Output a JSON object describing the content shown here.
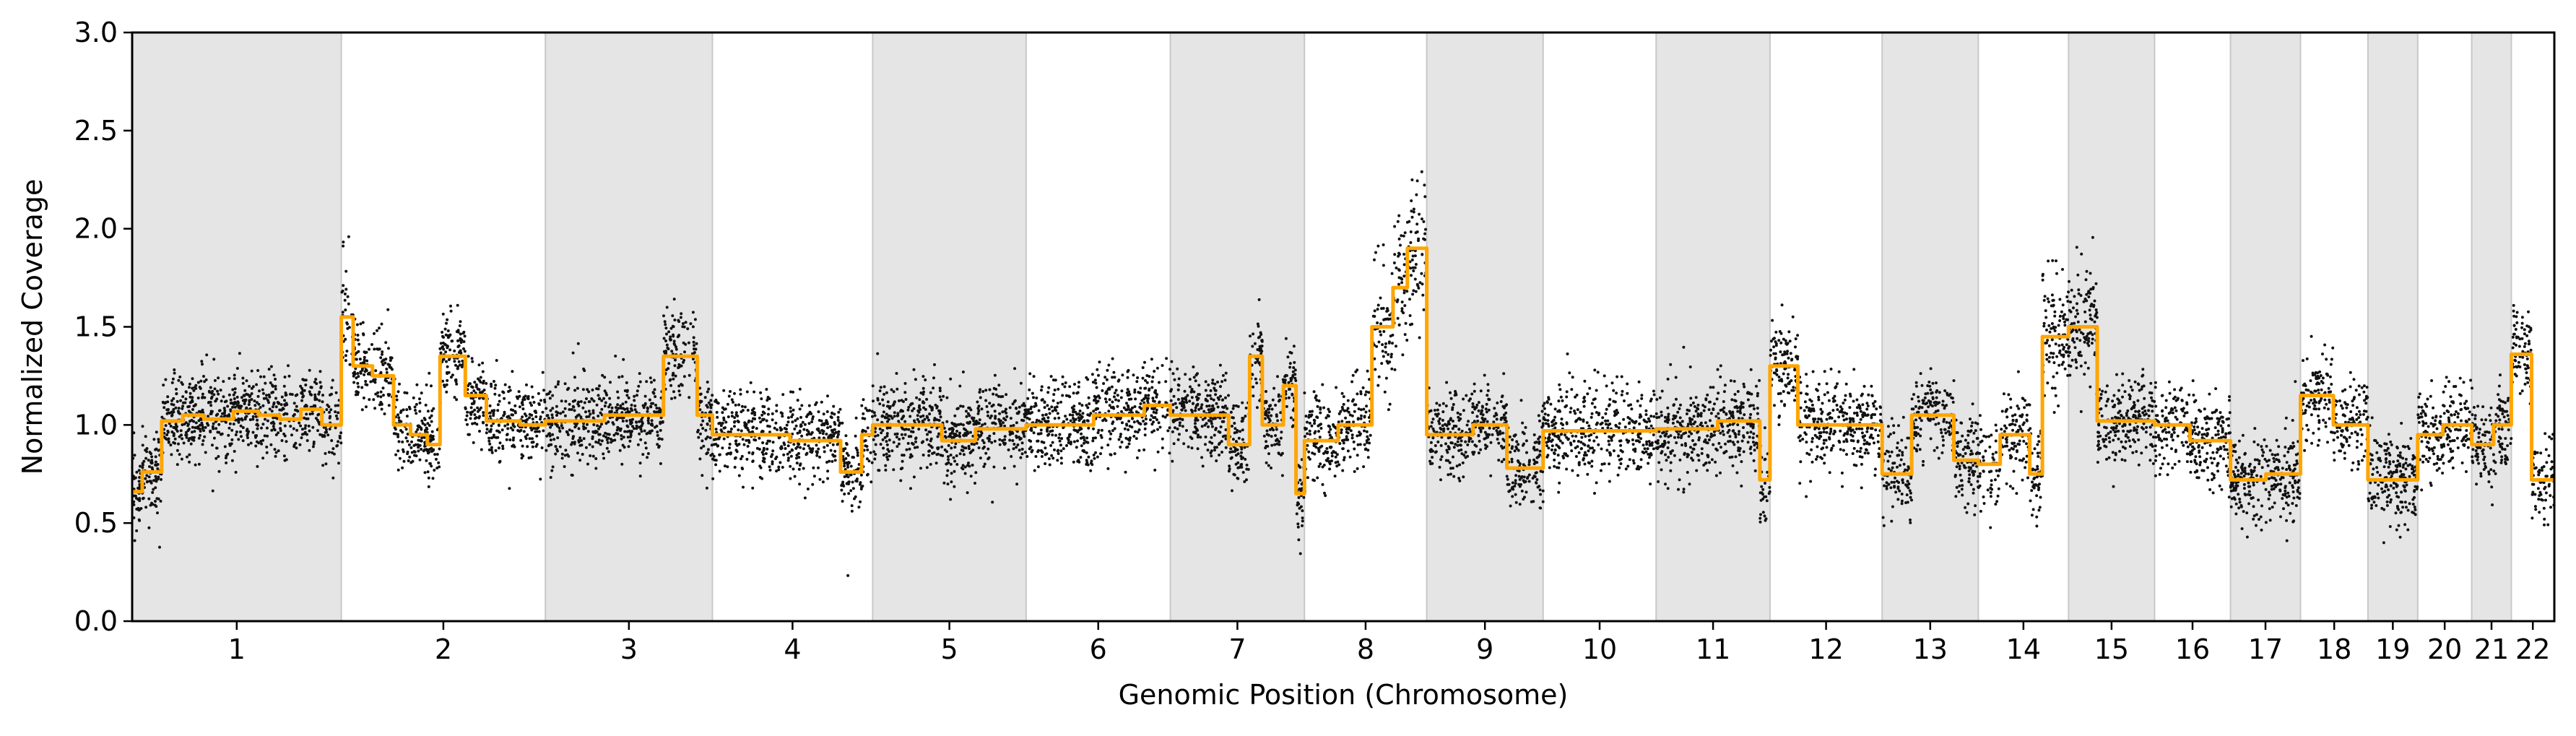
{
  "chart_data": {
    "type": "scatter",
    "xlabel": "Genomic Position (Chromosome)",
    "ylabel": "Normalized Coverage",
    "ylim": [
      0.0,
      3.0
    ],
    "yticks": [
      "0.0",
      "0.5",
      "1.0",
      "1.5",
      "2.0",
      "2.5",
      "3.0"
    ],
    "grid": false,
    "legend": "none",
    "alternating_bands": true,
    "colors": {
      "points": "#111111",
      "segments": "#FFA500",
      "band": "#e5e5e5",
      "band_edge": "#c8c8c8"
    },
    "chromosomes": [
      {
        "label": "1",
        "start": 0.0,
        "end": 248.0
      },
      {
        "label": "2",
        "start": 248.0,
        "end": 490.0
      },
      {
        "label": "3",
        "start": 490.0,
        "end": 688.0
      },
      {
        "label": "4",
        "start": 688.0,
        "end": 878.0
      },
      {
        "label": "5",
        "start": 878.0,
        "end": 1060.0
      },
      {
        "label": "6",
        "start": 1060.0,
        "end": 1231.0
      },
      {
        "label": "7",
        "start": 1231.0,
        "end": 1390.0
      },
      {
        "label": "8",
        "start": 1390.0,
        "end": 1535.0
      },
      {
        "label": "9",
        "start": 1535.0,
        "end": 1673.0
      },
      {
        "label": "10",
        "start": 1673.0,
        "end": 1807.0
      },
      {
        "label": "11",
        "start": 1807.0,
        "end": 1942.0
      },
      {
        "label": "12",
        "start": 1942.0,
        "end": 2075.0
      },
      {
        "label": "13",
        "start": 2075.0,
        "end": 2189.0
      },
      {
        "label": "14",
        "start": 2189.0,
        "end": 2296.0
      },
      {
        "label": "15",
        "start": 2296.0,
        "end": 2398.0
      },
      {
        "label": "16",
        "start": 2398.0,
        "end": 2488.0
      },
      {
        "label": "17",
        "start": 2488.0,
        "end": 2571.0
      },
      {
        "label": "18",
        "start": 2571.0,
        "end": 2651.0
      },
      {
        "label": "19",
        "start": 2651.0,
        "end": 2710.0
      },
      {
        "label": "20",
        "start": 2710.0,
        "end": 2774.0
      },
      {
        "label": "21",
        "start": 2774.0,
        "end": 2821.0
      },
      {
        "label": "22",
        "start": 2821.0,
        "end": 2872.0
      }
    ],
    "segments": [
      {
        "x0": 0,
        "x1": 12,
        "y": 0.66
      },
      {
        "x0": 12,
        "x1": 35,
        "y": 0.76
      },
      {
        "x0": 35,
        "x1": 60,
        "y": 1.02
      },
      {
        "x0": 60,
        "x1": 85,
        "y": 1.05
      },
      {
        "x0": 85,
        "x1": 120,
        "y": 1.03
      },
      {
        "x0": 120,
        "x1": 150,
        "y": 1.07
      },
      {
        "x0": 150,
        "x1": 175,
        "y": 1.05
      },
      {
        "x0": 175,
        "x1": 200,
        "y": 1.03
      },
      {
        "x0": 200,
        "x1": 225,
        "y": 1.08
      },
      {
        "x0": 225,
        "x1": 248,
        "y": 1.0
      },
      {
        "x0": 248,
        "x1": 262,
        "y": 1.55
      },
      {
        "x0": 262,
        "x1": 285,
        "y": 1.3
      },
      {
        "x0": 285,
        "x1": 310,
        "y": 1.25
      },
      {
        "x0": 310,
        "x1": 330,
        "y": 1.0
      },
      {
        "x0": 330,
        "x1": 350,
        "y": 0.95
      },
      {
        "x0": 350,
        "x1": 365,
        "y": 0.9
      },
      {
        "x0": 365,
        "x1": 395,
        "y": 1.35
      },
      {
        "x0": 395,
        "x1": 420,
        "y": 1.15
      },
      {
        "x0": 420,
        "x1": 460,
        "y": 1.02
      },
      {
        "x0": 460,
        "x1": 490,
        "y": 1.0
      },
      {
        "x0": 490,
        "x1": 560,
        "y": 1.02
      },
      {
        "x0": 560,
        "x1": 630,
        "y": 1.05
      },
      {
        "x0": 630,
        "x1": 670,
        "y": 1.35
      },
      {
        "x0": 670,
        "x1": 688,
        "y": 1.05
      },
      {
        "x0": 688,
        "x1": 780,
        "y": 0.95
      },
      {
        "x0": 780,
        "x1": 840,
        "y": 0.92
      },
      {
        "x0": 840,
        "x1": 865,
        "y": 0.76
      },
      {
        "x0": 865,
        "x1": 878,
        "y": 0.95
      },
      {
        "x0": 878,
        "x1": 960,
        "y": 1.0
      },
      {
        "x0": 960,
        "x1": 1000,
        "y": 0.92
      },
      {
        "x0": 1000,
        "x1": 1060,
        "y": 0.98
      },
      {
        "x0": 1060,
        "x1": 1140,
        "y": 1.0
      },
      {
        "x0": 1140,
        "x1": 1200,
        "y": 1.05
      },
      {
        "x0": 1200,
        "x1": 1231,
        "y": 1.1
      },
      {
        "x0": 1231,
        "x1": 1300,
        "y": 1.05
      },
      {
        "x0": 1300,
        "x1": 1325,
        "y": 0.9
      },
      {
        "x0": 1325,
        "x1": 1340,
        "y": 1.35
      },
      {
        "x0": 1340,
        "x1": 1365,
        "y": 1.0
      },
      {
        "x0": 1365,
        "x1": 1380,
        "y": 1.2
      },
      {
        "x0": 1380,
        "x1": 1390,
        "y": 0.65
      },
      {
        "x0": 1390,
        "x1": 1430,
        "y": 0.92
      },
      {
        "x0": 1430,
        "x1": 1470,
        "y": 1.0
      },
      {
        "x0": 1470,
        "x1": 1495,
        "y": 1.5
      },
      {
        "x0": 1495,
        "x1": 1512,
        "y": 1.7
      },
      {
        "x0": 1512,
        "x1": 1535,
        "y": 1.9
      },
      {
        "x0": 1535,
        "x1": 1590,
        "y": 0.95
      },
      {
        "x0": 1590,
        "x1": 1630,
        "y": 1.0
      },
      {
        "x0": 1630,
        "x1": 1673,
        "y": 0.78
      },
      {
        "x0": 1673,
        "x1": 1807,
        "y": 0.97
      },
      {
        "x0": 1807,
        "x1": 1880,
        "y": 0.98
      },
      {
        "x0": 1880,
        "x1": 1930,
        "y": 1.02
      },
      {
        "x0": 1930,
        "x1": 1942,
        "y": 0.72
      },
      {
        "x0": 1942,
        "x1": 1975,
        "y": 1.3
      },
      {
        "x0": 1975,
        "x1": 2075,
        "y": 1.0
      },
      {
        "x0": 2075,
        "x1": 2110,
        "y": 0.75
      },
      {
        "x0": 2110,
        "x1": 2160,
        "y": 1.05
      },
      {
        "x0": 2160,
        "x1": 2189,
        "y": 0.82
      },
      {
        "x0": 2189,
        "x1": 2215,
        "y": 0.8
      },
      {
        "x0": 2215,
        "x1": 2250,
        "y": 0.95
      },
      {
        "x0": 2250,
        "x1": 2265,
        "y": 0.75
      },
      {
        "x0": 2265,
        "x1": 2296,
        "y": 1.45
      },
      {
        "x0": 2296,
        "x1": 2330,
        "y": 1.5
      },
      {
        "x0": 2330,
        "x1": 2398,
        "y": 1.02
      },
      {
        "x0": 2398,
        "x1": 2440,
        "y": 1.0
      },
      {
        "x0": 2440,
        "x1": 2488,
        "y": 0.92
      },
      {
        "x0": 2488,
        "x1": 2530,
        "y": 0.72
      },
      {
        "x0": 2530,
        "x1": 2571,
        "y": 0.75
      },
      {
        "x0": 2571,
        "x1": 2610,
        "y": 1.15
      },
      {
        "x0": 2610,
        "x1": 2651,
        "y": 1.0
      },
      {
        "x0": 2651,
        "x1": 2710,
        "y": 0.72
      },
      {
        "x0": 2710,
        "x1": 2740,
        "y": 0.95
      },
      {
        "x0": 2740,
        "x1": 2774,
        "y": 1.0
      },
      {
        "x0": 2774,
        "x1": 2800,
        "y": 0.9
      },
      {
        "x0": 2800,
        "x1": 2821,
        "y": 1.0
      },
      {
        "x0": 2821,
        "x1": 2835,
        "y": 1.36
      },
      {
        "x0": 2835,
        "x1": 2845,
        "y": 1.36
      },
      {
        "x0": 2845,
        "x1": 2872,
        "y": 0.72
      }
    ]
  }
}
